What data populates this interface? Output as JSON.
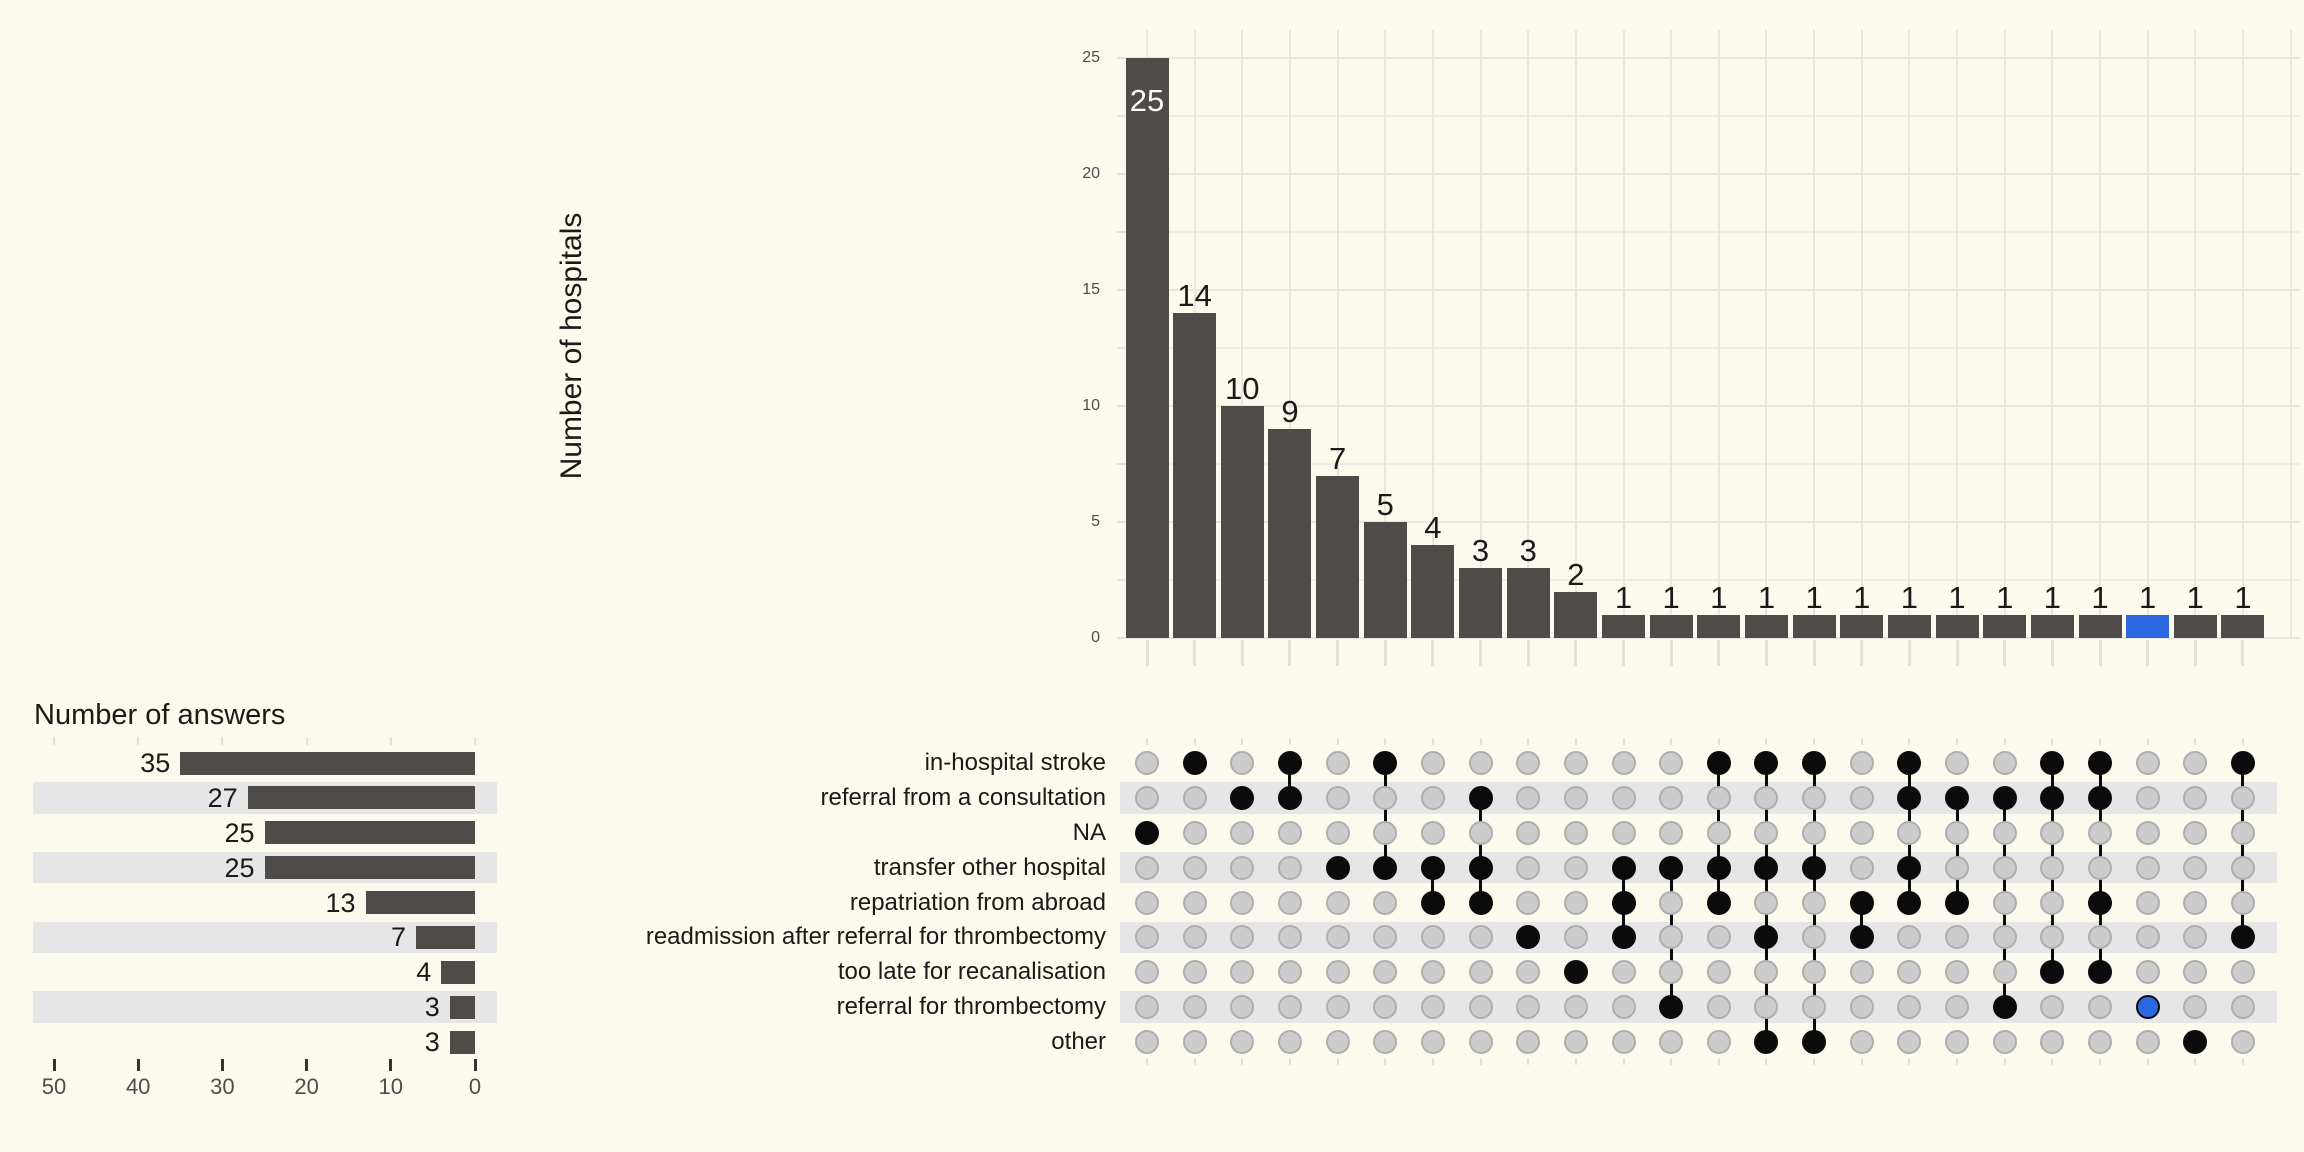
{
  "colors": {
    "background": "#FCFAEC",
    "bar": "#4E4B48",
    "highlight_blue": "#2B68E1",
    "stripe": "#E6E6E6",
    "gridline": "#E7E7E0",
    "gridline_minor": "#EEEDE4",
    "axis_tick_light": "#E2E2D8",
    "axis_tick_dark": "#333333",
    "dot_empty_fill": "#CCCCCC",
    "dot_empty_border": "#AEAEAE",
    "dot_filled": "#0B0B0B",
    "text_dark": "#1A1A1A",
    "tick_text": "#4D4D4D",
    "bar_label_inside": "#FFFFFF"
  },
  "chart_data": {
    "type": "upset",
    "top_bar_chart": {
      "ylabel": "Number of hospitals",
      "ylim": [
        0,
        25
      ],
      "yticks": [
        0,
        5,
        10,
        15,
        20,
        25
      ],
      "minor_grid_step": 2.5,
      "bar_values": [
        25,
        14,
        10,
        9,
        7,
        5,
        4,
        3,
        3,
        2,
        1,
        1,
        1,
        1,
        1,
        1,
        1,
        1,
        1,
        1,
        1,
        1,
        1,
        1
      ],
      "first_label_inside_bar": true,
      "highlighted_bar_index": 21
    },
    "set_size_chart": {
      "title": "Number of answers",
      "xticks": [
        50,
        40,
        30,
        20,
        10,
        0
      ],
      "axis_reversed": true,
      "values": [
        35,
        27,
        25,
        25,
        13,
        7,
        4,
        3,
        3
      ]
    },
    "sets": [
      "in-hospital stroke",
      "referral from a consultation",
      "NA",
      "transfer other hospital",
      "repatriation from abroad",
      "readmission after referral for thrombectomy",
      "too late for recanalisation",
      "referral for thrombectomy",
      "other"
    ],
    "intersections": [
      {
        "members": [
          2
        ],
        "value": 25
      },
      {
        "members": [
          0
        ],
        "value": 14
      },
      {
        "members": [
          1
        ],
        "value": 10
      },
      {
        "members": [
          0,
          1
        ],
        "value": 9
      },
      {
        "members": [
          3
        ],
        "value": 7
      },
      {
        "members": [
          0,
          3
        ],
        "value": 5
      },
      {
        "members": [
          3,
          4
        ],
        "value": 4
      },
      {
        "members": [
          1,
          3,
          4
        ],
        "value": 3
      },
      {
        "members": [
          5
        ],
        "value": 3
      },
      {
        "members": [
          6
        ],
        "value": 2
      },
      {
        "members": [
          3,
          4,
          5
        ],
        "value": 1
      },
      {
        "members": [
          3,
          7
        ],
        "value": 1
      },
      {
        "members": [
          0,
          3,
          4
        ],
        "value": 1
      },
      {
        "members": [
          0,
          3,
          5,
          8
        ],
        "value": 1
      },
      {
        "members": [
          0,
          3,
          8
        ],
        "value": 1
      },
      {
        "members": [
          4,
          5
        ],
        "value": 1
      },
      {
        "members": [
          0,
          1,
          3,
          4
        ],
        "value": 1
      },
      {
        "members": [
          1,
          4
        ],
        "value": 1
      },
      {
        "members": [
          1,
          7
        ],
        "value": 1
      },
      {
        "members": [
          0,
          1,
          6
        ],
        "value": 1
      },
      {
        "members": [
          0,
          1,
          4,
          6
        ],
        "value": 1
      },
      {
        "members": [
          7
        ],
        "value": 1,
        "highlighted": true
      },
      {
        "members": [
          8
        ],
        "value": 1
      },
      {
        "members": [
          0,
          5
        ],
        "value": 1
      }
    ]
  }
}
